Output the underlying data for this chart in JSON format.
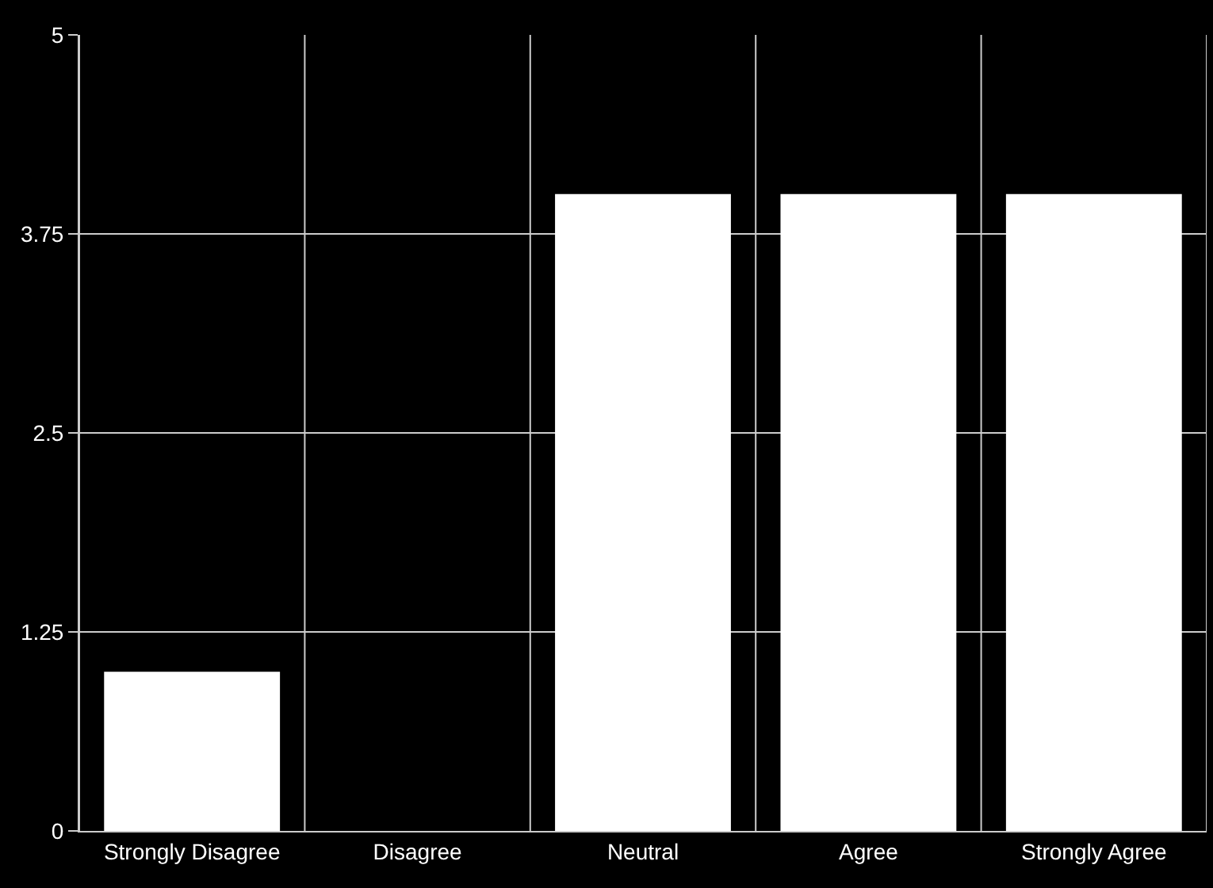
{
  "chart_data": {
    "type": "bar",
    "categories": [
      "Strongly Disagree",
      "Disagree",
      "Neutral",
      "Agree",
      "Strongly Agree"
    ],
    "values": [
      1,
      0,
      4,
      4,
      4
    ],
    "color": "#ffffff",
    "ylim": [
      0,
      5
    ],
    "yticks": [
      0,
      1.25,
      2.5,
      3.75,
      5
    ],
    "grid": true
  }
}
